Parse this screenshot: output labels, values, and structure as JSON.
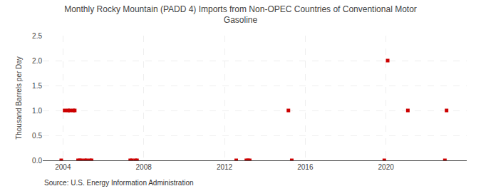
{
  "chart_data": {
    "type": "scatter",
    "title": "Monthly Rocky Mountain (PADD 4) Imports from Non-OPEC Countries of Conventional Motor\nGasoline",
    "ylabel": "Thousand Barrels per Day",
    "annotations": [
      "Source: U.S. Energy Information Administration"
    ],
    "marker": "square",
    "color": "#cc0000",
    "grid": true,
    "xlim": [
      2003.0,
      2024.0
    ],
    "ylim": [
      0.0,
      2.5
    ],
    "xticks": [
      2004,
      2008,
      2012,
      2016,
      2020
    ],
    "yticks": [
      {
        "value": 0.0,
        "label": "0.0"
      },
      0.5,
      {
        "value": 1.0,
        "label": "1.0"
      },
      1.5,
      {
        "value": 2.0,
        "label": "2.0"
      },
      2.5
    ],
    "x": [
      2003.917,
      2004.083,
      2004.25,
      2004.333,
      2004.5,
      2004.583,
      2004.75,
      2004.833,
      2004.917,
      2005.083,
      2005.167,
      2005.333,
      2005.417,
      2007.333,
      2007.417,
      2007.583,
      2007.667,
      2012.583,
      2013.083,
      2013.167,
      2013.25,
      2015.167,
      2015.333,
      2019.917,
      2020.083,
      2021.083,
      2022.917,
      2023.0
    ],
    "values": [
      0.0,
      1.0,
      1.0,
      1.0,
      1.0,
      1.0,
      0.0,
      0.0,
      0.0,
      0.0,
      0.0,
      0.0,
      0.0,
      0.0,
      0.0,
      0.0,
      0.0,
      0.0,
      0.0,
      0.0,
      0.0,
      1.0,
      0.0,
      0.0,
      2.0,
      1.0,
      0.0,
      1.0
    ]
  }
}
